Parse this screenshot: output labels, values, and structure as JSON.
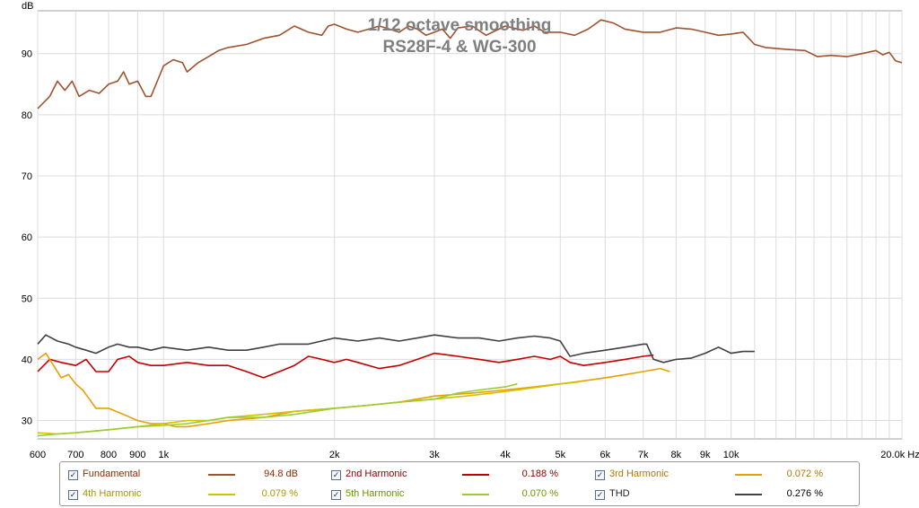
{
  "chart_data": {
    "type": "line",
    "title": [
      "1/12 octave smoothing",
      "RS28F-4 & WG-300"
    ],
    "ylabel": "dB",
    "x_unit": "Hz",
    "x_scale": "log",
    "xlim": [
      600,
      20000
    ],
    "ylim": [
      27,
      97
    ],
    "y_ticks": [
      30,
      40,
      50,
      60,
      70,
      80,
      90
    ],
    "y_tick_labels": [
      "30",
      "40",
      "50",
      "60",
      "70",
      "80",
      "90"
    ],
    "x_ticks": [
      600,
      700,
      800,
      900,
      1000,
      2000,
      3000,
      4000,
      5000,
      6000,
      7000,
      8000,
      9000,
      10000,
      20000
    ],
    "x_tick_labels": [
      "600",
      "700",
      "800",
      "900",
      "1k",
      "2k",
      "3k",
      "4k",
      "5k",
      "6k",
      "7k",
      "8k",
      "9k",
      "10k",
      "20.0k Hz"
    ],
    "grid": true,
    "series": [
      {
        "name": "Fundamental",
        "color": "#a0522d",
        "points": [
          [
            600,
            81
          ],
          [
            630,
            83
          ],
          [
            650,
            85.5
          ],
          [
            670,
            84
          ],
          [
            690,
            85.5
          ],
          [
            710,
            83
          ],
          [
            740,
            84
          ],
          [
            770,
            83.5
          ],
          [
            800,
            85
          ],
          [
            830,
            85.5
          ],
          [
            850,
            87
          ],
          [
            870,
            85
          ],
          [
            900,
            85.5
          ],
          [
            930,
            83
          ],
          [
            950,
            83
          ],
          [
            980,
            86
          ],
          [
            1000,
            88
          ],
          [
            1040,
            89
          ],
          [
            1080,
            88.5
          ],
          [
            1100,
            87
          ],
          [
            1150,
            88.5
          ],
          [
            1200,
            89.5
          ],
          [
            1250,
            90.5
          ],
          [
            1300,
            91
          ],
          [
            1400,
            91.5
          ],
          [
            1500,
            92.5
          ],
          [
            1600,
            93
          ],
          [
            1700,
            94.5
          ],
          [
            1800,
            93.5
          ],
          [
            1900,
            93
          ],
          [
            1950,
            94.5
          ],
          [
            2000,
            94.8
          ],
          [
            2100,
            94
          ],
          [
            2200,
            93.5
          ],
          [
            2300,
            94
          ],
          [
            2400,
            94.5
          ],
          [
            2500,
            94
          ],
          [
            2600,
            93.5
          ],
          [
            2700,
            94.5
          ],
          [
            2800,
            94
          ],
          [
            2900,
            93
          ],
          [
            3000,
            93.5
          ],
          [
            3100,
            94
          ],
          [
            3200,
            92.5
          ],
          [
            3300,
            94.2
          ],
          [
            3500,
            94.5
          ],
          [
            3700,
            93
          ],
          [
            4000,
            94.5
          ],
          [
            4300,
            93.8
          ],
          [
            4500,
            94.5
          ],
          [
            4700,
            93.5
          ],
          [
            5000,
            93.5
          ],
          [
            5300,
            93
          ],
          [
            5600,
            94
          ],
          [
            5900,
            95.5
          ],
          [
            6200,
            95
          ],
          [
            6500,
            94
          ],
          [
            7000,
            93.5
          ],
          [
            7500,
            93.5
          ],
          [
            8000,
            94.2
          ],
          [
            8500,
            94
          ],
          [
            9000,
            93.5
          ],
          [
            9500,
            93
          ],
          [
            10000,
            93.2
          ],
          [
            10500,
            93.5
          ],
          [
            11000,
            91.5
          ],
          [
            11500,
            91
          ],
          [
            12500,
            90.7
          ],
          [
            13500,
            90.5
          ],
          [
            14200,
            89.5
          ],
          [
            15000,
            89.7
          ],
          [
            16000,
            89.5
          ],
          [
            17000,
            90
          ],
          [
            18000,
            90.5
          ],
          [
            18500,
            89.8
          ],
          [
            19000,
            90.2
          ],
          [
            19500,
            88.8
          ],
          [
            20000,
            88.5
          ]
        ]
      },
      {
        "name": "2nd Harmonic",
        "color": "#c00000",
        "points": [
          [
            600,
            38
          ],
          [
            630,
            40
          ],
          [
            660,
            39.5
          ],
          [
            700,
            39
          ],
          [
            730,
            40
          ],
          [
            760,
            38
          ],
          [
            800,
            38
          ],
          [
            830,
            40
          ],
          [
            870,
            40.5
          ],
          [
            900,
            39.5
          ],
          [
            950,
            39
          ],
          [
            1000,
            39
          ],
          [
            1100,
            39.5
          ],
          [
            1200,
            39
          ],
          [
            1300,
            39
          ],
          [
            1400,
            38
          ],
          [
            1500,
            37
          ],
          [
            1600,
            38
          ],
          [
            1700,
            39
          ],
          [
            1800,
            40.5
          ],
          [
            1900,
            40
          ],
          [
            2000,
            39.5
          ],
          [
            2100,
            40
          ],
          [
            2200,
            39.5
          ],
          [
            2400,
            38.5
          ],
          [
            2600,
            39
          ],
          [
            2800,
            40
          ],
          [
            3000,
            41
          ],
          [
            3300,
            40.5
          ],
          [
            3600,
            40
          ],
          [
            3900,
            39.5
          ],
          [
            4200,
            40
          ],
          [
            4500,
            40.5
          ],
          [
            4800,
            40
          ],
          [
            5000,
            40.5
          ],
          [
            5200,
            39.5
          ],
          [
            5500,
            39
          ],
          [
            6000,
            39.5
          ],
          [
            6500,
            40
          ],
          [
            7000,
            40.5
          ],
          [
            7300,
            40.7
          ]
        ]
      },
      {
        "name": "3rd Harmonic",
        "color": "#e8a000",
        "points": [
          [
            600,
            40
          ],
          [
            620,
            41
          ],
          [
            640,
            39
          ],
          [
            660,
            37
          ],
          [
            680,
            37.5
          ],
          [
            700,
            36
          ],
          [
            720,
            35
          ],
          [
            740,
            33.5
          ],
          [
            760,
            32
          ],
          [
            800,
            32
          ],
          [
            850,
            31
          ],
          [
            900,
            30
          ],
          [
            950,
            29.5
          ],
          [
            1000,
            29.5
          ],
          [
            1050,
            29
          ],
          [
            1100,
            29
          ],
          [
            1200,
            29.5
          ],
          [
            1300,
            30
          ],
          [
            1500,
            30.5
          ],
          [
            1700,
            31.5
          ],
          [
            2000,
            32
          ],
          [
            2300,
            32.5
          ],
          [
            2600,
            33
          ],
          [
            3000,
            34
          ],
          [
            3500,
            34.5
          ],
          [
            4000,
            35
          ],
          [
            4500,
            35.5
          ],
          [
            5000,
            36
          ],
          [
            5500,
            36.5
          ],
          [
            6000,
            37
          ],
          [
            6500,
            37.5
          ],
          [
            7000,
            38
          ],
          [
            7500,
            38.5
          ],
          [
            7800,
            38
          ]
        ]
      },
      {
        "name": "4th Harmonic",
        "color": "#d4c000",
        "points": [
          [
            600,
            28
          ],
          [
            650,
            27.8
          ],
          [
            700,
            28
          ],
          [
            800,
            28.5
          ],
          [
            900,
            29
          ],
          [
            1000,
            29.5
          ],
          [
            1100,
            30
          ],
          [
            1200,
            30
          ],
          [
            1300,
            30.5
          ],
          [
            1500,
            31
          ],
          [
            1700,
            31.5
          ],
          [
            2000,
            32
          ],
          [
            2300,
            32.5
          ],
          [
            2600,
            33
          ],
          [
            3000,
            33.5
          ],
          [
            3400,
            34
          ],
          [
            3800,
            34.5
          ],
          [
            4200,
            35
          ],
          [
            4600,
            35.5
          ],
          [
            5000,
            36
          ],
          [
            5400,
            36.3
          ]
        ]
      },
      {
        "name": "5th Harmonic",
        "color": "#9acd32",
        "points": [
          [
            600,
            27.5
          ],
          [
            650,
            27.8
          ],
          [
            700,
            28
          ],
          [
            800,
            28.5
          ],
          [
            900,
            29
          ],
          [
            1000,
            29.2
          ],
          [
            1100,
            29.5
          ],
          [
            1200,
            30
          ],
          [
            1300,
            30.5
          ],
          [
            1500,
            30.5
          ],
          [
            1700,
            31
          ],
          [
            2000,
            32
          ],
          [
            2300,
            32.5
          ],
          [
            2600,
            33
          ],
          [
            3000,
            33.5
          ],
          [
            3300,
            34.5
          ],
          [
            3600,
            35
          ],
          [
            4000,
            35.5
          ],
          [
            4200,
            36
          ]
        ]
      },
      {
        "name": "THD",
        "color": "#404040",
        "points": [
          [
            600,
            42.5
          ],
          [
            620,
            44
          ],
          [
            650,
            43
          ],
          [
            680,
            42.5
          ],
          [
            700,
            42
          ],
          [
            730,
            41.5
          ],
          [
            760,
            41
          ],
          [
            800,
            42
          ],
          [
            830,
            42.5
          ],
          [
            870,
            42
          ],
          [
            900,
            42
          ],
          [
            950,
            41.5
          ],
          [
            1000,
            42
          ],
          [
            1100,
            41.5
          ],
          [
            1200,
            42
          ],
          [
            1300,
            41.5
          ],
          [
            1400,
            41.5
          ],
          [
            1500,
            42
          ],
          [
            1600,
            42.5
          ],
          [
            1800,
            42.5
          ],
          [
            2000,
            43.5
          ],
          [
            2200,
            43
          ],
          [
            2400,
            43.5
          ],
          [
            2600,
            43
          ],
          [
            2800,
            43.5
          ],
          [
            3000,
            44
          ],
          [
            3300,
            43.5
          ],
          [
            3600,
            43.5
          ],
          [
            3900,
            43
          ],
          [
            4200,
            43.5
          ],
          [
            4500,
            43.8
          ],
          [
            4800,
            43.5
          ],
          [
            5000,
            43
          ],
          [
            5200,
            40.5
          ],
          [
            5500,
            41
          ],
          [
            6000,
            41.5
          ],
          [
            6500,
            42
          ],
          [
            7000,
            42.5
          ],
          [
            7100,
            42.5
          ],
          [
            7300,
            40
          ],
          [
            7600,
            39.5
          ],
          [
            8000,
            40
          ],
          [
            8500,
            40.2
          ],
          [
            9000,
            41
          ],
          [
            9500,
            42
          ],
          [
            10000,
            41
          ],
          [
            10500,
            41.3
          ],
          [
            11000,
            41.3
          ]
        ]
      }
    ]
  },
  "legend": [
    {
      "label": "Fundamental",
      "value": "94.8 dB",
      "color": "#a0522d",
      "label_color": "#8b2c00"
    },
    {
      "label": "2nd Harmonic",
      "value": "0.188 %",
      "color": "#c00000",
      "label_color": "#8b0000"
    },
    {
      "label": "3rd Harmonic",
      "value": "0.072 %",
      "color": "#e8a000",
      "label_color": "#b07800"
    },
    {
      "label": "4th Harmonic",
      "value": "0.079 %",
      "color": "#d4c000",
      "label_color": "#a89600"
    },
    {
      "label": "5th Harmonic",
      "value": "0.070 %",
      "color": "#9acd32",
      "label_color": "#6b9400"
    },
    {
      "label": "THD",
      "value": "0.276 %",
      "color": "#404040",
      "label_color": "#202020"
    }
  ],
  "checkbox_mark": "✓"
}
